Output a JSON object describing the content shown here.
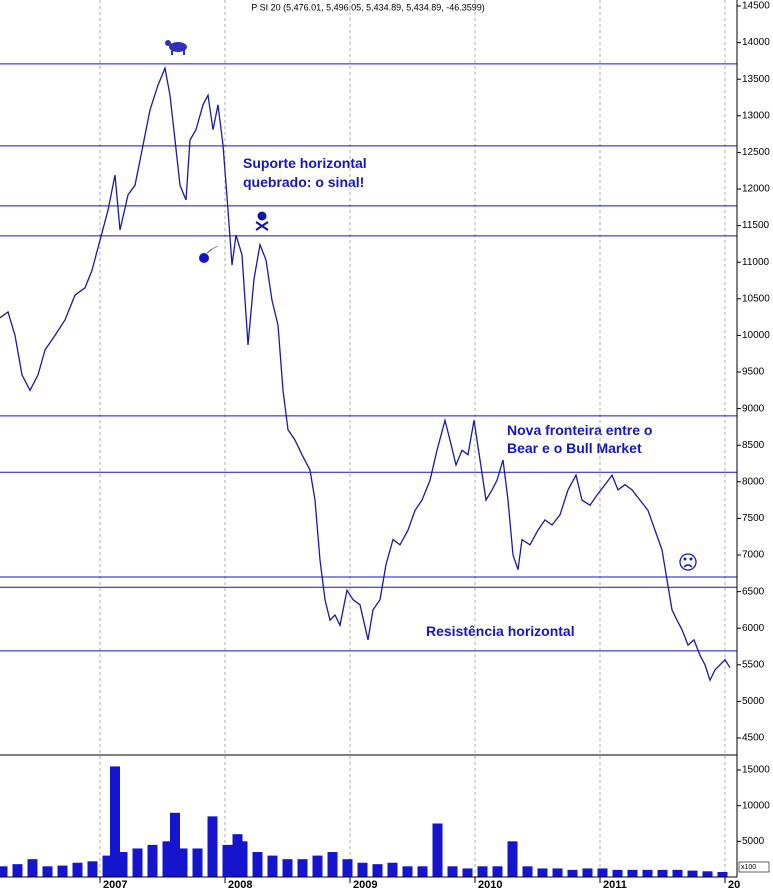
{
  "chart_data": [
    {
      "type": "line",
      "title": "P SI 20 (5,476.01, 5,496.05, 5,434.89, 5,434.89, -46.3599)",
      "annotations": [
        [
          "Suporte horizontal",
          "quebrado: o sinal!"
        ],
        [
          "Nova fronteira entre o",
          "Bear e o Bull Market"
        ],
        [
          "Resistência horizontal"
        ]
      ],
      "color": "#1a1aa6",
      "hline_color": "#1515c8",
      "hlines": [
        13710,
        12590,
        11770,
        11360,
        8900,
        8130,
        6700,
        6560,
        5690
      ],
      "xlim": [
        2006.2,
        2012.096
      ],
      "ylim": [
        4268,
        14582
      ],
      "yticks": [
        4500,
        5000,
        5500,
        6000,
        6500,
        7000,
        7500,
        8000,
        8500,
        9000,
        9500,
        10000,
        10500,
        11000,
        11500,
        12000,
        12500,
        13000,
        13500,
        14000,
        14500
      ],
      "x": [
        2006.2,
        2006.264,
        2006.32,
        2006.376,
        2006.44,
        2006.504,
        2006.56,
        2006.64,
        2006.72,
        2006.8,
        2006.88,
        2006.936,
        2007.0,
        2007.064,
        2007.12,
        2007.16,
        2007.224,
        2007.28,
        2007.336,
        2007.4,
        2007.464,
        2007.52,
        2007.56,
        2007.6,
        2007.64,
        2007.688,
        2007.72,
        2007.768,
        2007.824,
        2007.864,
        2007.904,
        2007.944,
        2007.984,
        2008.024,
        2008.056,
        2008.088,
        2008.136,
        2008.184,
        2008.232,
        2008.28,
        2008.328,
        2008.376,
        2008.424,
        2008.464,
        2008.504,
        2008.56,
        2008.616,
        2008.68,
        2008.72,
        2008.76,
        2008.8,
        2008.84,
        2008.88,
        2008.92,
        2008.976,
        2009.024,
        2009.08,
        2009.144,
        2009.184,
        2009.24,
        2009.288,
        2009.344,
        2009.4,
        2009.464,
        2009.52,
        2009.576,
        2009.64,
        2009.696,
        2009.76,
        2009.8,
        2009.848,
        2009.896,
        2009.944,
        2009.992,
        2010.04,
        2010.088,
        2010.136,
        2010.176,
        2010.224,
        2010.264,
        2010.304,
        2010.344,
        2010.376,
        2010.44,
        2010.504,
        2010.56,
        2010.616,
        2010.68,
        2010.744,
        2010.808,
        2010.856,
        2010.92,
        2010.976,
        2011.04,
        2011.096,
        2011.144,
        2011.2,
        2011.256,
        2011.32,
        2011.384,
        2011.44,
        2011.496,
        2011.536,
        2011.576,
        2011.616,
        2011.656,
        2011.704,
        2011.752,
        2011.8,
        2011.84,
        2011.88,
        2011.92,
        2011.96,
        2012.0,
        2012.04
      ],
      "values": [
        10240,
        10320,
        10000,
        9460,
        9250,
        9460,
        9800,
        10000,
        10210,
        10550,
        10650,
        10890,
        11300,
        11710,
        12190,
        11440,
        11920,
        12050,
        12530,
        13080,
        13420,
        13650,
        13280,
        12670,
        12050,
        11850,
        12670,
        12810,
        13150,
        13280,
        12810,
        13150,
        12600,
        11710,
        10960,
        11370,
        11100,
        9870,
        10770,
        11240,
        11030,
        10480,
        10140,
        9250,
        8710,
        8570,
        8370,
        8160,
        7750,
        6930,
        6390,
        6110,
        6180,
        6040,
        6520,
        6390,
        6320,
        5840,
        6250,
        6390,
        6870,
        7210,
        7140,
        7340,
        7610,
        7750,
        8020,
        8430,
        8840,
        8570,
        8230,
        8430,
        8370,
        8840,
        8300,
        7750,
        7890,
        8020,
        8300,
        7750,
        7000,
        6800,
        7210,
        7140,
        7340,
        7480,
        7410,
        7550,
        7890,
        8090,
        7750,
        7680,
        7820,
        7960,
        8090,
        7890,
        7960,
        7890,
        7750,
        7610,
        7340,
        7070,
        6660,
        6250,
        6110,
        5980,
        5770,
        5840,
        5630,
        5500,
        5290,
        5430,
        5500,
        5570,
        5460
      ]
    },
    {
      "type": "bar",
      "color": "#1515d0",
      "unit_label": "x100",
      "xlim": [
        2006.2,
        2012.096
      ],
      "xticks": [
        2007,
        2008,
        2009,
        2010,
        2011,
        {
          "value": 2012,
          "label": "20"
        }
      ],
      "ylim": [
        0,
        17100
      ],
      "yticks": [
        5000,
        10000,
        15000
      ],
      "x": [
        2006.22,
        2006.34,
        2006.46,
        2006.58,
        2006.7,
        2006.82,
        2006.94,
        2007.06,
        2007.12,
        2007.18,
        2007.3,
        2007.42,
        2007.54,
        2007.6,
        2007.66,
        2007.78,
        2007.9,
        2008.02,
        2008.1,
        2008.14,
        2008.26,
        2008.38,
        2008.5,
        2008.62,
        2008.74,
        2008.86,
        2008.98,
        2009.1,
        2009.22,
        2009.34,
        2009.46,
        2009.58,
        2009.7,
        2009.82,
        2009.94,
        2010.06,
        2010.18,
        2010.3,
        2010.42,
        2010.54,
        2010.66,
        2010.78,
        2010.9,
        2011.02,
        2011.14,
        2011.26,
        2011.38,
        2011.5,
        2011.62,
        2011.74,
        2011.86,
        2011.98
      ],
      "values": [
        1500,
        1800,
        2500,
        1500,
        1600,
        2000,
        2200,
        3000,
        15500,
        3500,
        4000,
        4500,
        5000,
        9000,
        4000,
        4000,
        8500,
        4500,
        6000,
        5000,
        3500,
        3000,
        2500,
        2500,
        3000,
        3500,
        2500,
        2000,
        1800,
        2000,
        1500,
        1500,
        7500,
        1500,
        1200,
        1500,
        1500,
        5000,
        1500,
        1200,
        1200,
        1000,
        1200,
        1200,
        1000,
        1000,
        1000,
        1000,
        1000,
        900,
        800,
        700
      ]
    }
  ]
}
